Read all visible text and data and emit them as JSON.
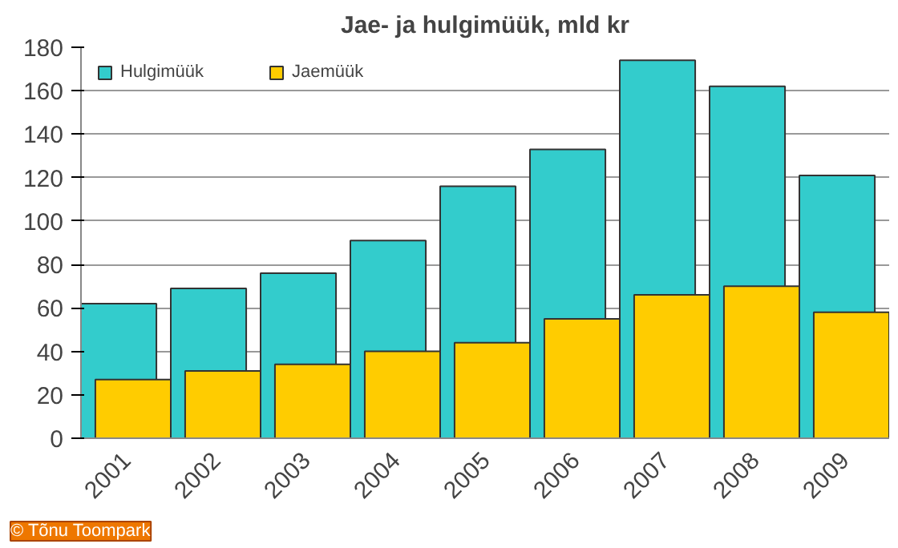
{
  "chart_data": {
    "type": "bar",
    "title": "Jae- ja hulgimüük, mld kr",
    "categories": [
      "2001",
      "2002",
      "2003",
      "2004",
      "2005",
      "2006",
      "2007",
      "2008",
      "2009"
    ],
    "series": [
      {
        "name": "Hulgimüük",
        "color": "#33cccc",
        "values": [
          62,
          69,
          76,
          91,
          116,
          133,
          174,
          162,
          121
        ]
      },
      {
        "name": "Jaemüük",
        "color": "#ffcc00",
        "values": [
          27,
          31,
          34,
          40,
          44,
          55,
          66,
          70,
          58
        ]
      }
    ],
    "ylim": [
      0,
      180
    ],
    "yticks": [
      0,
      20,
      40,
      60,
      80,
      100,
      120,
      140,
      160,
      180
    ],
    "grid": "y",
    "legend": "top left",
    "annotations": [
      "© Tõnu Toompark"
    ]
  }
}
